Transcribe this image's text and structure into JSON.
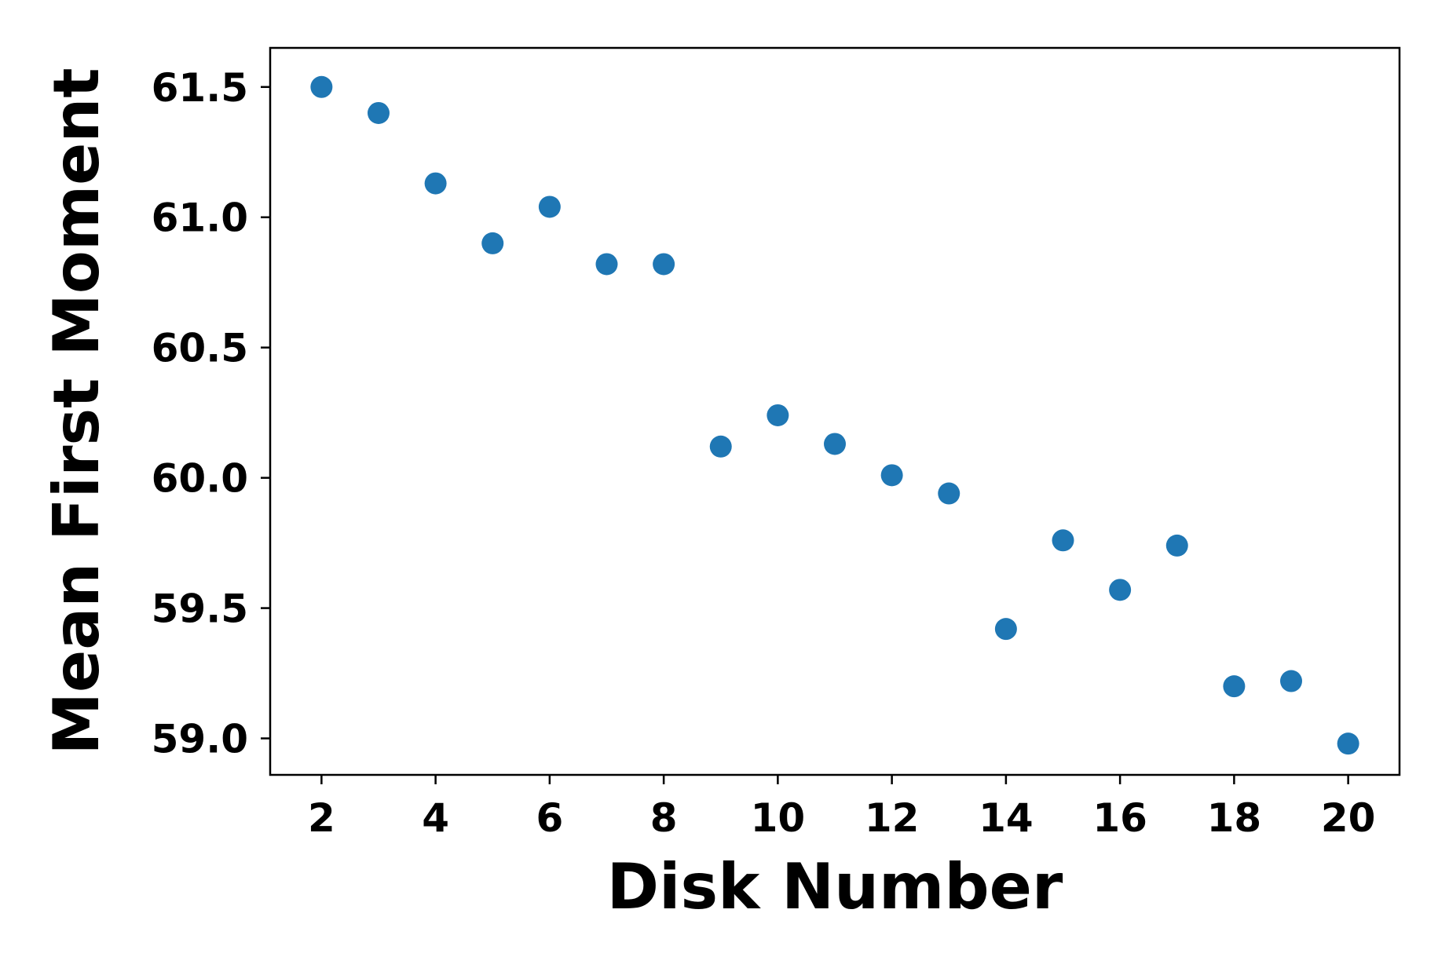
{
  "chart_data": {
    "type": "scatter",
    "title": "",
    "xlabel": "Disk Number",
    "ylabel": "Mean First Moment",
    "xlim": [
      1.1,
      20.9
    ],
    "ylim": [
      58.86,
      61.65
    ],
    "x_ticks": [
      2,
      4,
      6,
      8,
      10,
      12,
      14,
      16,
      18,
      20
    ],
    "x_tick_labels": [
      "2",
      "4",
      "6",
      "8",
      "10",
      "12",
      "14",
      "16",
      "18",
      "20"
    ],
    "y_ticks": [
      59.0,
      59.5,
      60.0,
      60.5,
      61.0,
      61.5
    ],
    "y_tick_labels": [
      "59.0",
      "59.5",
      "60.0",
      "60.5",
      "61.0",
      "61.5"
    ],
    "grid": false,
    "legend": false,
    "marker_color": "#1f77b4",
    "series": [
      {
        "x": [
          2,
          3,
          4,
          5,
          6,
          7,
          8,
          9,
          10,
          11,
          12,
          13,
          14,
          15,
          16,
          17,
          18,
          19,
          20
        ],
        "y": [
          61.5,
          61.4,
          61.13,
          60.9,
          61.04,
          60.82,
          60.82,
          60.12,
          60.24,
          60.13,
          60.01,
          59.94,
          59.42,
          59.76,
          59.57,
          59.74,
          59.2,
          59.22,
          58.98
        ]
      }
    ]
  }
}
